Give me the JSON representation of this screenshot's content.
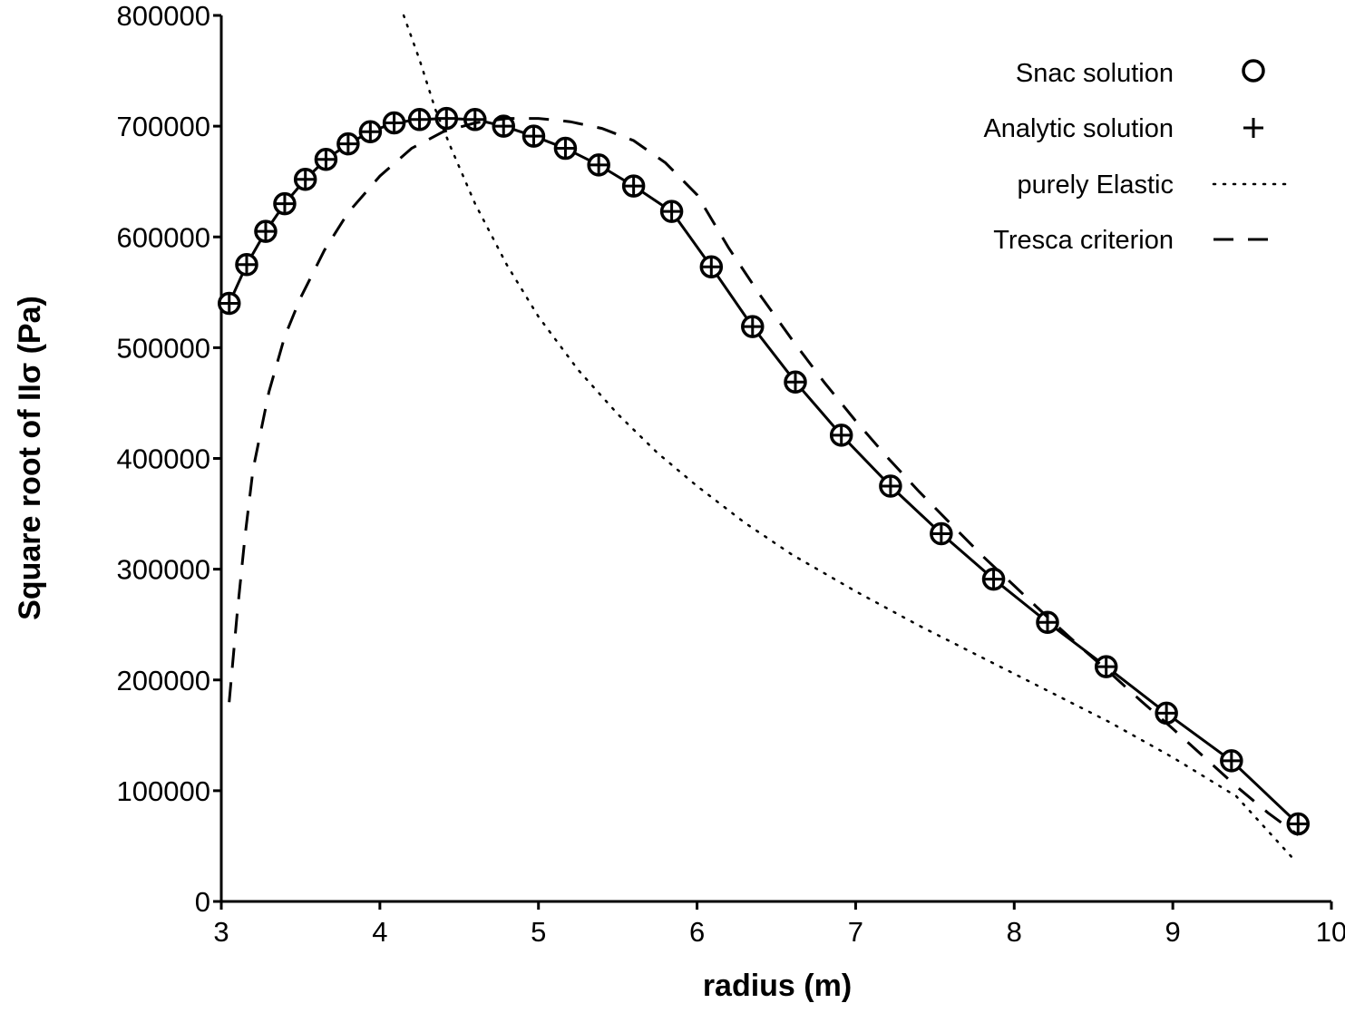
{
  "chart_data": {
    "type": "line",
    "xlabel": "radius (m)",
    "ylabel": "Square root of IIσ (Pa)",
    "xlim": [
      3,
      10
    ],
    "ylim": [
      0,
      800000
    ],
    "x_ticks": [
      "3",
      "4",
      "5",
      "6",
      "7",
      "8",
      "9",
      "10"
    ],
    "y_ticks": [
      "0",
      "100000",
      "200000",
      "300000",
      "400000",
      "500000",
      "600000",
      "700000",
      "800000"
    ],
    "grid": false,
    "legend_position": "top-right",
    "colors": {
      "line": "#000000",
      "background": "#ffffff"
    },
    "series": [
      {
        "name": "Snac solution",
        "marker": "circle",
        "connected": true,
        "x": [
          3.05,
          3.16,
          3.28,
          3.4,
          3.53,
          3.66,
          3.8,
          3.94,
          4.09,
          4.25,
          4.42,
          4.6,
          4.78,
          4.97,
          5.17,
          5.38,
          5.6,
          5.84,
          6.09,
          6.35,
          6.62,
          6.91,
          7.22,
          7.54,
          7.87,
          8.21,
          8.58,
          8.96,
          9.37,
          9.79
        ],
        "y": [
          540000,
          575000,
          605000,
          630000,
          652000,
          670000,
          684000,
          695000,
          703000,
          706000,
          707000,
          706000,
          700000,
          691000,
          680000,
          665000,
          646000,
          623000,
          573000,
          519000,
          469000,
          421000,
          375000,
          332000,
          291000,
          252000,
          212000,
          170000,
          127000,
          70000
        ]
      },
      {
        "name": "Analytic solution",
        "marker": "plus",
        "connected": false,
        "x": [
          3.05,
          3.16,
          3.28,
          3.4,
          3.53,
          3.66,
          3.8,
          3.94,
          4.09,
          4.25,
          4.42,
          4.6,
          4.78,
          4.97,
          5.17,
          5.38,
          5.6,
          5.84,
          6.09,
          6.35,
          6.62,
          6.91,
          7.22,
          7.54,
          7.87,
          8.21,
          8.58,
          8.96,
          9.37,
          9.79
        ],
        "y": [
          540000,
          575000,
          605000,
          630000,
          652000,
          670000,
          684000,
          695000,
          703000,
          706000,
          707000,
          706000,
          700000,
          691000,
          680000,
          665000,
          646000,
          623000,
          573000,
          519000,
          469000,
          421000,
          375000,
          332000,
          291000,
          252000,
          212000,
          170000,
          127000,
          70000
        ]
      },
      {
        "name": "purely Elastic",
        "style": "dotted",
        "x": [
          4.15,
          4.25,
          4.35,
          4.45,
          4.6,
          4.8,
          5.0,
          5.25,
          5.5,
          5.75,
          6.0,
          6.3,
          6.6,
          7.0,
          7.4,
          7.8,
          8.2,
          8.6,
          9.0,
          9.4,
          9.75
        ],
        "y": [
          800000,
          760000,
          715000,
          680000,
          630000,
          575000,
          528000,
          480000,
          440000,
          405000,
          375000,
          342000,
          313000,
          280000,
          249000,
          220000,
          191000,
          162000,
          130000,
          95000,
          40000
        ]
      },
      {
        "name": "Tresca criterion",
        "style": "dashed",
        "x": [
          3.05,
          3.1,
          3.15,
          3.2,
          3.3,
          3.4,
          3.5,
          3.65,
          3.8,
          4.0,
          4.2,
          4.4,
          4.6,
          4.8,
          5.0,
          5.2,
          5.4,
          5.6,
          5.8,
          6.0,
          6.2,
          6.4,
          6.6,
          6.8,
          7.0,
          7.2,
          7.4,
          7.6,
          7.8,
          8.0,
          8.2,
          8.4,
          8.6,
          8.8,
          9.0,
          9.2,
          9.4,
          9.6,
          9.79
        ],
        "y": [
          180000,
          260000,
          330000,
          390000,
          460000,
          510000,
          545000,
          588000,
          622000,
          655000,
          680000,
          695000,
          703000,
          707000,
          707000,
          704000,
          698000,
          687000,
          667000,
          638000,
          590000,
          547000,
          507000,
          469000,
          434000,
          401000,
          370000,
          341000,
          312000,
          285000,
          258000,
          232000,
          207000,
          181000,
          156000,
          130000,
          104000,
          80000,
          60000
        ]
      }
    ]
  }
}
